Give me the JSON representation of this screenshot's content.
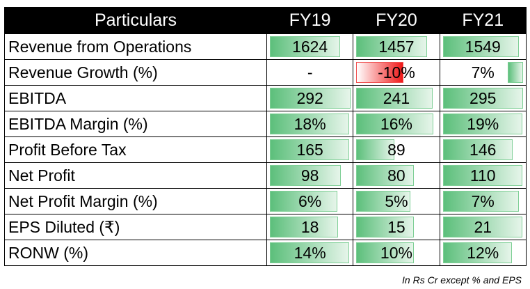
{
  "header": {
    "particulars": "Particulars",
    "years": [
      "FY19",
      "FY20",
      "FY21"
    ]
  },
  "rows": [
    {
      "label": "Revenue from Operations",
      "cells": [
        {
          "text": "1624",
          "bar": 0.85
        },
        {
          "text": "1457",
          "bar": 0.86
        },
        {
          "text": "1549",
          "bar": 0.92
        }
      ]
    },
    {
      "label": "Revenue Growth (%)",
      "cells": [
        {
          "text": "-",
          "bar": 0
        },
        {
          "text": "-10%",
          "bar": 0.58,
          "negative": true
        },
        {
          "text": "7%",
          "bar": 0.36,
          "positive_right": true
        }
      ]
    },
    {
      "label": "EBITDA",
      "cells": [
        {
          "text": "292",
          "bar": 0.97
        },
        {
          "text": "241",
          "bar": 0.92
        },
        {
          "text": "295",
          "bar": 0.97
        }
      ]
    },
    {
      "label": "EBITDA Margin (%)",
      "cells": [
        {
          "text": "18%",
          "bar": 0.96
        },
        {
          "text": "16%",
          "bar": 0.93
        },
        {
          "text": "19%",
          "bar": 0.96
        }
      ]
    },
    {
      "label": "Profit Before Tax",
      "cells": [
        {
          "text": "165",
          "bar": 0.96
        },
        {
          "text": "89",
          "bar": 0.48
        },
        {
          "text": "146",
          "bar": 0.85
        }
      ]
    },
    {
      "label": "Net Profit",
      "cells": [
        {
          "text": "98",
          "bar": 0.86
        },
        {
          "text": "80",
          "bar": 0.7
        },
        {
          "text": "110",
          "bar": 0.96
        }
      ]
    },
    {
      "label": "Net Profit Margin (%)",
      "cells": [
        {
          "text": "6%",
          "bar": 0.82
        },
        {
          "text": "5%",
          "bar": 0.66
        },
        {
          "text": "7%",
          "bar": 0.92
        }
      ]
    },
    {
      "label": "EPS Diluted (₹)",
      "cells": [
        {
          "text": "18",
          "bar": 0.83
        },
        {
          "text": "15",
          "bar": 0.7
        },
        {
          "text": "21",
          "bar": 0.96
        }
      ]
    },
    {
      "label": "RONW (%)",
      "cells": [
        {
          "text": "14%",
          "bar": 0.96
        },
        {
          "text": "10%",
          "bar": 0.7
        },
        {
          "text": "12%",
          "bar": 0.84
        }
      ]
    }
  ],
  "footnote": "In Rs Cr except % and EPS",
  "colors": {
    "header_bg": "#000000",
    "bar_green": "#5cbf7b",
    "bar_red": "#f01818"
  }
}
